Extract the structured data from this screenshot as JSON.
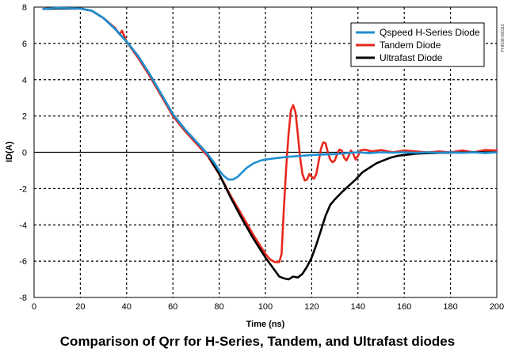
{
  "caption": "Comparison of Qrr for H-Series, Tandem, and Ultrafast diodes",
  "side_code": "PI-8038-080116",
  "chart_data": {
    "type": "line",
    "xlabel": "Time (ns)",
    "ylabel": "ID(A)",
    "xlim": [
      0,
      200
    ],
    "ylim": [
      -8,
      8
    ],
    "x_ticks": [
      0,
      20,
      40,
      60,
      80,
      100,
      120,
      140,
      160,
      180,
      200
    ],
    "y_ticks": [
      8,
      6,
      4,
      2,
      0,
      -2,
      -4,
      -6,
      -8
    ],
    "grid": "dashed",
    "legend_position": "top-right",
    "series": [
      {
        "name": "Qspeed H-Series Diode",
        "color": "#1f8fd1",
        "points": [
          [
            4,
            7.9
          ],
          [
            10,
            7.95
          ],
          [
            20,
            7.92
          ],
          [
            25,
            7.8
          ],
          [
            30,
            7.4
          ],
          [
            35,
            6.8
          ],
          [
            40,
            6.1
          ],
          [
            45,
            5.3
          ],
          [
            50,
            4.3
          ],
          [
            55,
            3.2
          ],
          [
            60,
            2.1
          ],
          [
            65,
            1.3
          ],
          [
            70,
            0.6
          ],
          [
            75,
            -0.1
          ],
          [
            78,
            -0.6
          ],
          [
            80,
            -1.0
          ],
          [
            82,
            -1.3
          ],
          [
            84,
            -1.5
          ],
          [
            86,
            -1.5
          ],
          [
            88,
            -1.35
          ],
          [
            90,
            -1.1
          ],
          [
            92,
            -0.85
          ],
          [
            95,
            -0.6
          ],
          [
            98,
            -0.45
          ],
          [
            100,
            -0.4
          ],
          [
            103,
            -0.35
          ],
          [
            106,
            -0.3
          ],
          [
            110,
            -0.25
          ],
          [
            115,
            -0.2
          ],
          [
            120,
            -0.15
          ],
          [
            125,
            -0.12
          ],
          [
            130,
            -0.1
          ],
          [
            135,
            -0.05
          ],
          [
            140,
            0.0
          ],
          [
            145,
            -0.05
          ],
          [
            150,
            0.0
          ],
          [
            155,
            -0.02
          ],
          [
            160,
            0.0
          ],
          [
            165,
            -0.03
          ],
          [
            170,
            0.0
          ],
          [
            175,
            -0.02
          ],
          [
            180,
            0.0
          ],
          [
            185,
            -0.03
          ],
          [
            190,
            0.0
          ],
          [
            195,
            -0.05
          ],
          [
            200,
            0.0
          ]
        ]
      },
      {
        "name": "Tandem Diode",
        "color": "#e8281e",
        "points": [
          [
            4,
            7.9
          ],
          [
            10,
            7.92
          ],
          [
            20,
            7.92
          ],
          [
            25,
            7.8
          ],
          [
            30,
            7.4
          ],
          [
            35,
            6.85
          ],
          [
            37,
            6.5
          ],
          [
            38,
            6.7
          ],
          [
            40,
            6.1
          ],
          [
            45,
            5.2
          ],
          [
            50,
            4.2
          ],
          [
            55,
            3.1
          ],
          [
            60,
            2.0
          ],
          [
            65,
            1.2
          ],
          [
            70,
            0.5
          ],
          [
            75,
            -0.2
          ],
          [
            80,
            -1.2
          ],
          [
            85,
            -2.4
          ],
          [
            90,
            -3.5
          ],
          [
            95,
            -4.6
          ],
          [
            98,
            -5.2
          ],
          [
            100,
            -5.6
          ],
          [
            102,
            -5.9
          ],
          [
            104,
            -6.05
          ],
          [
            106,
            -6.05
          ],
          [
            107,
            -5.6
          ],
          [
            108,
            -3.0
          ],
          [
            109,
            -0.8
          ],
          [
            110,
            1.0
          ],
          [
            111,
            2.3
          ],
          [
            112,
            2.6
          ],
          [
            113,
            2.2
          ],
          [
            114,
            1.0
          ],
          [
            115,
            -0.3
          ],
          [
            116,
            -1.2
          ],
          [
            117,
            -1.55
          ],
          [
            118,
            -1.5
          ],
          [
            119,
            -1.2
          ],
          [
            120,
            -1.35
          ],
          [
            121,
            -1.45
          ],
          [
            122,
            -1.2
          ],
          [
            123,
            -0.5
          ],
          [
            124,
            0.2
          ],
          [
            125,
            0.55
          ],
          [
            126,
            0.5
          ],
          [
            127,
            0.0
          ],
          [
            128,
            -0.4
          ],
          [
            129,
            -0.55
          ],
          [
            130,
            -0.45
          ],
          [
            131,
            -0.1
          ],
          [
            132,
            0.15
          ],
          [
            133,
            0.1
          ],
          [
            134,
            -0.3
          ],
          [
            135,
            -0.45
          ],
          [
            136,
            -0.2
          ],
          [
            137,
            0.1
          ],
          [
            138,
            -0.1
          ],
          [
            139,
            -0.4
          ],
          [
            140,
            -0.2
          ],
          [
            141,
            0.1
          ],
          [
            143,
            0.15
          ],
          [
            146,
            0.05
          ],
          [
            150,
            0.12
          ],
          [
            155,
            0.0
          ],
          [
            160,
            0.1
          ],
          [
            165,
            0.05
          ],
          [
            170,
            0.0
          ],
          [
            175,
            0.05
          ],
          [
            180,
            0.0
          ],
          [
            185,
            0.1
          ],
          [
            190,
            0.0
          ],
          [
            195,
            0.12
          ],
          [
            200,
            0.1
          ]
        ]
      },
      {
        "name": "Ultrafast Diode",
        "color": "#000000",
        "points": [
          [
            4,
            7.9
          ],
          [
            10,
            7.92
          ],
          [
            20,
            7.92
          ],
          [
            25,
            7.8
          ],
          [
            30,
            7.4
          ],
          [
            35,
            6.8
          ],
          [
            40,
            6.1
          ],
          [
            45,
            5.3
          ],
          [
            50,
            4.3
          ],
          [
            55,
            3.2
          ],
          [
            60,
            2.1
          ],
          [
            65,
            1.3
          ],
          [
            70,
            0.6
          ],
          [
            75,
            -0.1
          ],
          [
            80,
            -1.2
          ],
          [
            85,
            -2.5
          ],
          [
            90,
            -3.7
          ],
          [
            95,
            -4.8
          ],
          [
            100,
            -5.8
          ],
          [
            104,
            -6.5
          ],
          [
            106,
            -6.85
          ],
          [
            108,
            -6.95
          ],
          [
            110,
            -7.0
          ],
          [
            112,
            -6.85
          ],
          [
            114,
            -6.9
          ],
          [
            116,
            -6.7
          ],
          [
            118,
            -6.3
          ],
          [
            120,
            -5.8
          ],
          [
            122,
            -5.1
          ],
          [
            124,
            -4.3
          ],
          [
            126,
            -3.5
          ],
          [
            128,
            -2.9
          ],
          [
            130,
            -2.6
          ],
          [
            133,
            -2.2
          ],
          [
            136,
            -1.85
          ],
          [
            139,
            -1.5
          ],
          [
            142,
            -1.1
          ],
          [
            145,
            -0.85
          ],
          [
            148,
            -0.6
          ],
          [
            151,
            -0.45
          ],
          [
            154,
            -0.3
          ],
          [
            157,
            -0.2
          ],
          [
            160,
            -0.15
          ],
          [
            165,
            -0.08
          ],
          [
            170,
            -0.05
          ],
          [
            175,
            -0.03
          ],
          [
            180,
            -0.02
          ],
          [
            190,
            0.0
          ],
          [
            200,
            0.0
          ]
        ]
      }
    ]
  }
}
